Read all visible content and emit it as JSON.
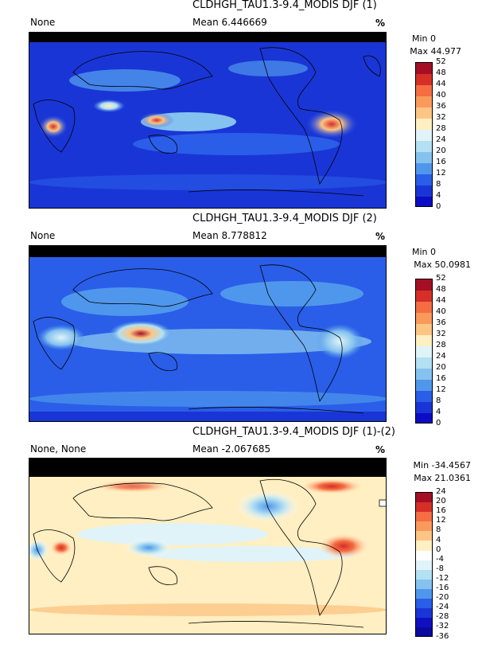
{
  "panels": [
    {
      "title": "CLDHGH_TAU1.3-9.4_MODIS DJF (1)",
      "left_label": "None",
      "mean_label": "Mean 6.446669",
      "units": "%",
      "min_label": "Min 0",
      "max_label": "Max 44.977",
      "levels": [
        "52",
        "48",
        "44",
        "40",
        "36",
        "32",
        "28",
        "24",
        "20",
        "16",
        "12",
        "8",
        "4",
        "0"
      ],
      "colors": [
        "#a50f26",
        "#d62f27",
        "#f46d43",
        "#fa9a5a",
        "#fdc584",
        "#ffefc2",
        "#e0f3f8",
        "#b3e0f2",
        "#85c2ef",
        "#4f97ec",
        "#2a5ee8",
        "#1a35d6",
        "#0c0cc5"
      ]
    },
    {
      "title": "CLDHGH_TAU1.3-9.4_MODIS DJF (2)",
      "left_label": "None",
      "mean_label": "Mean 8.778812",
      "units": "%",
      "min_label": "Min 0",
      "max_label": "Max 50.0981",
      "levels": [
        "52",
        "48",
        "44",
        "40",
        "36",
        "32",
        "28",
        "24",
        "20",
        "16",
        "12",
        "8",
        "4",
        "0"
      ],
      "colors": [
        "#a50f26",
        "#d62f27",
        "#f46d43",
        "#fa9a5a",
        "#fdc584",
        "#ffefc2",
        "#e0f3f8",
        "#b3e0f2",
        "#85c2ef",
        "#4f97ec",
        "#2a5ee8",
        "#1a35d6",
        "#0c0cc5"
      ]
    },
    {
      "title": "CLDHGH_TAU1.3-9.4_MODIS DJF (1)-(2)",
      "left_label": "None, None",
      "mean_label": "Mean -2.067685",
      "units": "%",
      "min_label": "Min -34.4567",
      "max_label": "Max 21.0361",
      "levels": [
        "24",
        "20",
        "16",
        "12",
        "8",
        "4",
        "0",
        "-4",
        "-8",
        "-12",
        "-16",
        "-20",
        "-24",
        "-28",
        "-32",
        "-36"
      ],
      "colors": [
        "#a50f26",
        "#d62f27",
        "#f46d43",
        "#fa9a5a",
        "#fdc584",
        "#ffefc2",
        "#ffffff",
        "#e0f3f8",
        "#b3e0f2",
        "#85c2ef",
        "#4f97ec",
        "#2a5ee8",
        "#1a35d6",
        "#1010c0",
        "#0a0aa0"
      ]
    }
  ]
}
